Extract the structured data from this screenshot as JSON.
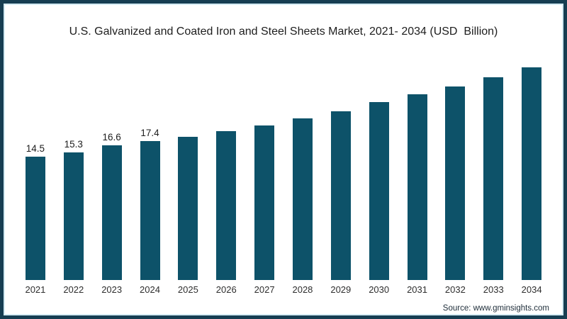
{
  "chart_data": {
    "type": "bar",
    "title": "U.S. Galvanized and Coated Iron and Steel Sheets Market, 2021- 2034 (USD  Billion)",
    "categories": [
      "2021",
      "2022",
      "2023",
      "2024",
      "2025",
      "2026",
      "2027",
      "2028",
      "2029",
      "2030",
      "2031",
      "2032",
      "2033",
      "2034"
    ],
    "values": [
      14.5,
      15.3,
      16.6,
      17.4,
      18.2,
      19.3,
      20.3,
      21.6,
      23.0,
      24.6,
      26.1,
      27.6,
      29.3,
      31.1
    ],
    "data_labels": [
      "14.5",
      "15.3",
      "16.6",
      "17.4",
      "",
      "",
      "",
      "",
      "",
      "",
      "",
      "",
      "",
      ""
    ],
    "xlabel": "",
    "ylabel": "",
    "ylim": [
      0,
      32
    ],
    "grid": false,
    "legend": false,
    "y_axis_visible": false,
    "x_axis_visible": true,
    "bar_color": "#0d5269"
  },
  "frame": {
    "border_color": "#173e52",
    "inner_line_color": "#d5ecf4",
    "background": "#ffffff"
  },
  "source": {
    "label": "Source: www.gminsights.com"
  }
}
